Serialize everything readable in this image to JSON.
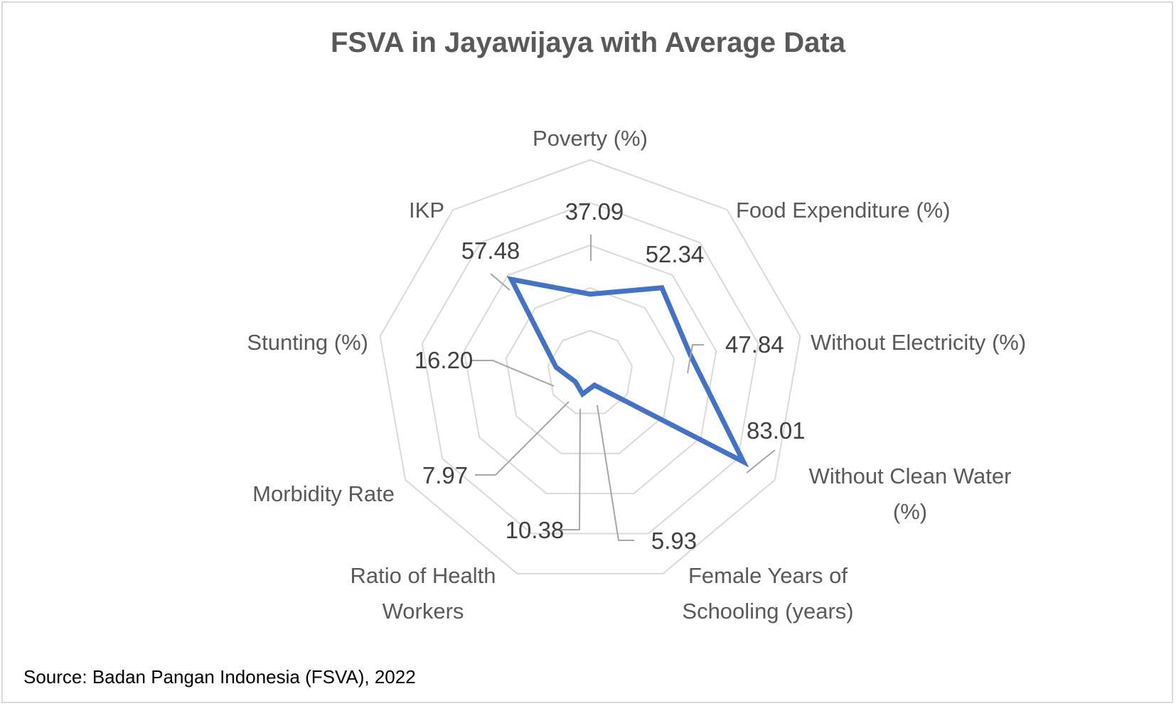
{
  "chart_data": {
    "type": "radar",
    "title": "FSVA in Jayawijaya with Average Data",
    "categories": [
      "Poverty (%)",
      "Food Expenditure (%)",
      "Without Electricity (%)",
      "Without Clean Water (%)",
      "Female Years of Schooling (years)",
      "Ratio of Health Workers",
      "Morbidity Rate",
      "Stunting (%)",
      "IKP"
    ],
    "series": [
      {
        "color": "#4472c4",
        "values": [
          37.09,
          52.34,
          47.84,
          83.01,
          5.93,
          10.38,
          7.97,
          16.2,
          57.48
        ],
        "labels": [
          "37.09",
          "52.34",
          "47.84",
          "83.01",
          "5.93",
          "10.38",
          "7.97",
          "16.20",
          "57.48"
        ]
      }
    ],
    "rlim": [
      0,
      100
    ],
    "rings": 5,
    "legend": "none"
  },
  "footer": {
    "source": "Source: Badan Pangan Indonesia (FSVA), 2022"
  }
}
